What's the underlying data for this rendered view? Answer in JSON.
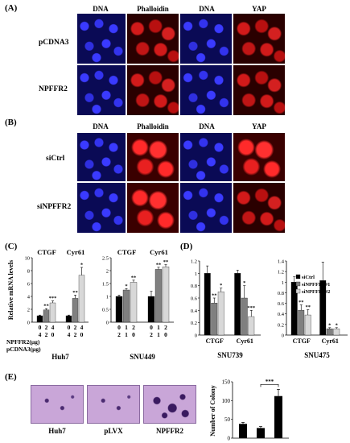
{
  "panel_a": {
    "label": "(A)",
    "columns": [
      "DNA",
      "Phalloidin",
      "DNA",
      "YAP"
    ],
    "rows": [
      "pCDNA3",
      "NPFFR2"
    ]
  },
  "panel_b": {
    "label": "(B)",
    "columns": [
      "DNA",
      "Phalloidin",
      "DNA",
      "YAP"
    ],
    "rows": [
      "siCtrl",
      "siNPFFR2"
    ]
  },
  "panel_c": {
    "label": "(C)",
    "ylabel": "Relative mRNA levels",
    "row1_label": "NPFFR2(μg)",
    "row2_label": "pCDNA3(μg)"
  },
  "panel_d": {
    "label": "(D)"
  },
  "panel_e": {
    "label": "(E)",
    "plate_labels": [
      "Huh7",
      "pLVX",
      "NPFFR2"
    ]
  },
  "chart_data": [
    {
      "type": "bar",
      "panel": "C",
      "group_label": "Huh7",
      "groups": [
        "CTGF",
        "Cyr61"
      ],
      "ylabel": "Relative mRNA levels",
      "ylim": [
        0,
        10
      ],
      "yticks": [
        0,
        2,
        4,
        6,
        8,
        10
      ],
      "x_row1": [
        "0",
        "2",
        "4",
        "0",
        "2",
        "4"
      ],
      "x_row2": [
        "4",
        "2",
        "0",
        "4",
        "2",
        "0"
      ],
      "values": [
        1.0,
        1.9,
        3.0,
        1.0,
        3.7,
        7.3
      ],
      "errors": [
        0.1,
        0.2,
        0.3,
        0.1,
        0.5,
        1.2
      ],
      "significance": [
        "",
        "**",
        "***",
        "",
        "**",
        "*"
      ],
      "colors": [
        "#000000",
        "#808080",
        "#d8d8d8",
        "#000000",
        "#808080",
        "#d8d8d8"
      ]
    },
    {
      "type": "bar",
      "panel": "C",
      "group_label": "SNU449",
      "groups": [
        "CTGF",
        "Cyr61"
      ],
      "ylim": [
        0,
        2.5
      ],
      "yticks": [
        0,
        0.5,
        1,
        1.5,
        2,
        2.5
      ],
      "x_row1": [
        "0",
        "1",
        "2",
        "0",
        "1",
        "2"
      ],
      "x_row2": [
        "2",
        "1",
        "0",
        "2",
        "1",
        "0"
      ],
      "values": [
        1.0,
        1.25,
        1.55,
        1.0,
        2.05,
        2.15
      ],
      "errors": [
        0.05,
        0.05,
        0.08,
        0.2,
        0.08,
        0.08
      ],
      "significance": [
        "",
        "*",
        "**",
        "",
        "**",
        "**"
      ],
      "colors": [
        "#000000",
        "#808080",
        "#d8d8d8",
        "#000000",
        "#808080",
        "#d8d8d8"
      ]
    },
    {
      "type": "bar",
      "panel": "D",
      "group_label": "SNU739",
      "groups": [
        "CTGF",
        "Cyr61"
      ],
      "ylim": [
        0,
        1.2
      ],
      "yticks": [
        0,
        0.2,
        0.4,
        0.6,
        0.8,
        1,
        1.2
      ],
      "values": [
        1.0,
        0.52,
        0.7,
        1.0,
        0.6,
        0.3
      ],
      "errors": [
        0.12,
        0.08,
        0.06,
        0.05,
        0.2,
        0.1
      ],
      "significance": [
        "",
        "**",
        "*",
        "",
        "*",
        "***"
      ],
      "colors": [
        "#000000",
        "#808080",
        "#d8d8d8",
        "#000000",
        "#808080",
        "#d8d8d8"
      ]
    },
    {
      "type": "bar",
      "panel": "D",
      "group_label": "SNU475",
      "groups": [
        "CTGF",
        "Cyr61"
      ],
      "ylim": [
        0,
        1.4
      ],
      "yticks": [
        0,
        0.2,
        0.4,
        0.6,
        0.8,
        1,
        1.2,
        1.4
      ],
      "values": [
        1.0,
        0.47,
        0.38,
        1.03,
        0.12,
        0.12
      ],
      "errors": [
        0.1,
        0.1,
        0.1,
        0.35,
        0.02,
        0.02
      ],
      "significance": [
        "",
        "**",
        "**",
        "",
        "*",
        "*"
      ],
      "series_names": [
        "siCtrl",
        "siNPFFR2#1",
        "siNPFFR2#2"
      ],
      "colors": [
        "#000000",
        "#808080",
        "#d8d8d8",
        "#000000",
        "#808080",
        "#d8d8d8"
      ]
    },
    {
      "type": "bar",
      "panel": "E",
      "ylabel": "Number of Colony",
      "ylim": [
        0,
        150
      ],
      "yticks": [
        0,
        50,
        100,
        150
      ],
      "categories": [
        "Huh7",
        "pLVX",
        "NPFFR2"
      ],
      "values": [
        38,
        27,
        112
      ],
      "errors": [
        4,
        4,
        18
      ],
      "significance_bracket": "***",
      "colors": [
        "#000000",
        "#000000",
        "#000000"
      ]
    }
  ]
}
